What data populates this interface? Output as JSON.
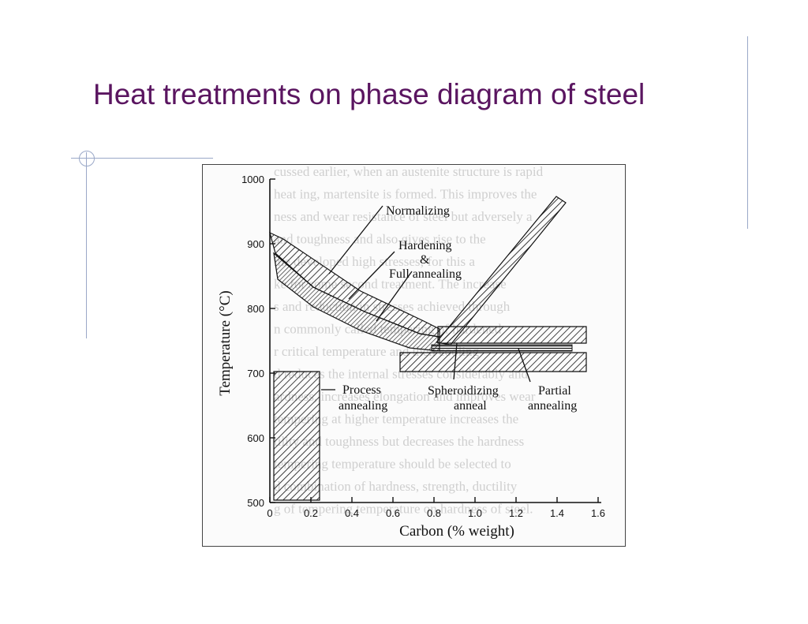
{
  "slide": {
    "title": "Heat treatments on phase diagram of steel"
  },
  "figure": {
    "y_axis_title": "Temperature (°C)",
    "x_axis_title": "Carbon (% weight)",
    "y_ticks": [
      "1000",
      "900",
      "800",
      "700",
      "600",
      "500"
    ],
    "x_ticks": [
      "0",
      "0.2",
      "0.4",
      "0.6",
      "0.8",
      "1.0",
      "1.2",
      "1.4",
      "1.6"
    ],
    "labels": {
      "normalizing": "Normalizing",
      "hardening": "Hardening",
      "ampersand": "&",
      "full_annealing": "Full annealing",
      "process": "Process",
      "annealing_1": "annealing",
      "spheroidizing": "Spheroidizing",
      "anneal": "anneal",
      "partial": "Partial",
      "annealing_2": "annealing"
    },
    "ghost_text": [
      "cussed earlier, when an austenite structure is rapid",
      "heat ing, martensite is formed. This improves the",
      "ness and wear resistance of steel but adversely a",
      "and toughness and also gives rise to the",
      "me developed high stresses; for this a",
      "ke for some second treatment. The increase",
      "s and reduction in stresses achieved through",
      "n commonly called tempering of hardened",
      "r critical temperature and then cooling",
      "d reduces the internal stresses considerably and",
      "ardness, increases elongation and improves wear",
      "tempering at higher temperature increases the",
      "tility and toughness but decreases the hardness",
      "tempering temperature should be selected to",
      "d combination of hardness, strength, ductility",
      "g of tempering temperature on hardness of steel."
    ]
  }
}
